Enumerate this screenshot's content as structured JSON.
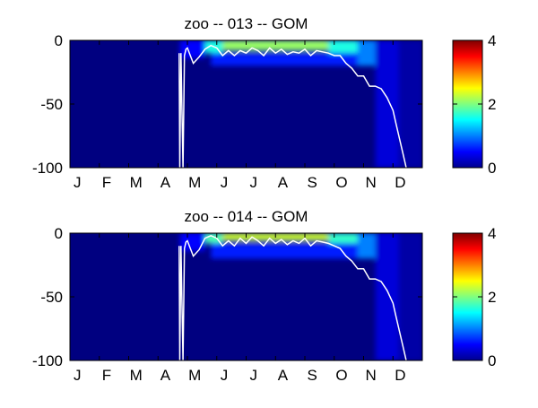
{
  "chart_data": [
    {
      "type": "heatmap",
      "title": "zoo -- 013 -- GOM",
      "xlabel": "",
      "ylabel": "",
      "x_tick_labels": [
        "J",
        "F",
        "M",
        "A",
        "M",
        "J",
        "J",
        "A",
        "S",
        "O",
        "N",
        "D"
      ],
      "y_ticks": [
        0,
        -50,
        -100
      ],
      "ylim": [
        -100,
        0
      ],
      "colorbar": {
        "ticks": [
          0,
          2,
          4
        ],
        "range": [
          0,
          4
        ],
        "colormap": "jet"
      },
      "contour_line_color": "#ffffff",
      "contour_depth": {
        "x_month": [
          3.72,
          3.74,
          3.78,
          3.85,
          3.9,
          3.95,
          4.0,
          4.2,
          4.4,
          4.6,
          4.8,
          5.0,
          5.2,
          5.4,
          5.6,
          5.8,
          6.0,
          6.2,
          6.4,
          6.6,
          6.8,
          7.0,
          7.2,
          7.4,
          7.6,
          7.8,
          8.0,
          8.2,
          8.4,
          8.6,
          8.8,
          9.0,
          9.2,
          9.4,
          9.6,
          9.8,
          10.0,
          10.2,
          10.4,
          10.6,
          10.8,
          11.0,
          11.1,
          11.2,
          11.3,
          11.4,
          11.45
        ],
        "depth": [
          -10,
          -100,
          -10,
          -100,
          -12,
          -7,
          -6,
          -18,
          -13,
          -7,
          -4,
          -6,
          -12,
          -8,
          -12,
          -8,
          -10,
          -6,
          -8,
          -12,
          -6,
          -10,
          -7,
          -11,
          -9,
          -10,
          -7,
          -12,
          -8,
          -9,
          -10,
          -12,
          -12,
          -18,
          -22,
          -28,
          -28,
          -36,
          -36,
          -38,
          -45,
          -55,
          -65,
          -75,
          -85,
          -95,
          -100
        ]
      },
      "field_levels": [
        {
          "x0": 3.75,
          "x1": 4.6,
          "d0": 0,
          "d1": -14,
          "v": 0.5
        },
        {
          "x0": 4.6,
          "x1": 5.2,
          "d0": 0,
          "d1": -10,
          "v": 1.6
        },
        {
          "x0": 5.2,
          "x1": 8.8,
          "d0": 0,
          "d1": -8,
          "v": 2.1
        },
        {
          "x0": 8.8,
          "x1": 9.8,
          "d0": 0,
          "d1": -10,
          "v": 1.6
        },
        {
          "x0": 4.8,
          "x1": 9.8,
          "d0": -10,
          "d1": -20,
          "v": 0.6
        },
        {
          "x0": 9.8,
          "x1": 10.4,
          "d0": 0,
          "d1": -20,
          "v": 1.0
        },
        {
          "x0": 10.4,
          "x1": 11.2,
          "d0": 0,
          "d1": -100,
          "v": 0.35
        },
        {
          "x0": 11.2,
          "x1": 12.0,
          "d0": 0,
          "d1": -100,
          "v": 0.15
        }
      ]
    },
    {
      "type": "heatmap",
      "title": "zoo -- 014 -- GOM",
      "xlabel": "",
      "ylabel": "",
      "x_tick_labels": [
        "J",
        "F",
        "M",
        "A",
        "M",
        "J",
        "J",
        "A",
        "S",
        "O",
        "N",
        "D"
      ],
      "y_ticks": [
        0,
        -50,
        -100
      ],
      "ylim": [
        -100,
        0
      ],
      "colorbar": {
        "ticks": [
          0,
          2,
          4
        ],
        "range": [
          0,
          4
        ],
        "colormap": "jet"
      },
      "contour_line_color": "#ffffff",
      "contour_depth": {
        "x_month": [
          3.72,
          3.74,
          3.78,
          3.85,
          3.9,
          3.95,
          4.0,
          4.2,
          4.4,
          4.6,
          4.8,
          5.0,
          5.2,
          5.4,
          5.6,
          5.8,
          6.0,
          6.2,
          6.4,
          6.6,
          6.8,
          7.0,
          7.2,
          7.4,
          7.6,
          7.8,
          8.0,
          8.2,
          8.4,
          8.6,
          8.8,
          9.0,
          9.2,
          9.4,
          9.6,
          9.8,
          10.0,
          10.2,
          10.4,
          10.6,
          10.8,
          11.0,
          11.1,
          11.2,
          11.3,
          11.4,
          11.45
        ],
        "depth": [
          -10,
          -100,
          -10,
          -100,
          -12,
          -7,
          -6,
          -18,
          -13,
          -4,
          -2,
          -4,
          -10,
          -6,
          -10,
          -4,
          -8,
          -3,
          -6,
          -10,
          -4,
          -8,
          -5,
          -9,
          -6,
          -8,
          -4,
          -10,
          -6,
          -7,
          -8,
          -10,
          -12,
          -18,
          -22,
          -28,
          -28,
          -36,
          -36,
          -38,
          -45,
          -55,
          -65,
          -75,
          -85,
          -95,
          -100
        ]
      },
      "field_levels": [
        {
          "x0": 3.75,
          "x1": 4.6,
          "d0": 0,
          "d1": -14,
          "v": 0.5
        },
        {
          "x0": 4.6,
          "x1": 5.2,
          "d0": 0,
          "d1": -8,
          "v": 1.8
        },
        {
          "x0": 5.2,
          "x1": 8.8,
          "d0": 0,
          "d1": -6,
          "v": 2.3
        },
        {
          "x0": 8.8,
          "x1": 9.8,
          "d0": 0,
          "d1": -10,
          "v": 1.7
        },
        {
          "x0": 4.8,
          "x1": 9.8,
          "d0": -8,
          "d1": -20,
          "v": 0.6
        },
        {
          "x0": 9.8,
          "x1": 10.4,
          "d0": 0,
          "d1": -20,
          "v": 1.0
        },
        {
          "x0": 10.4,
          "x1": 11.2,
          "d0": 0,
          "d1": -100,
          "v": 0.35
        },
        {
          "x0": 11.2,
          "x1": 12.0,
          "d0": 0,
          "d1": -100,
          "v": 0.15
        }
      ]
    }
  ]
}
